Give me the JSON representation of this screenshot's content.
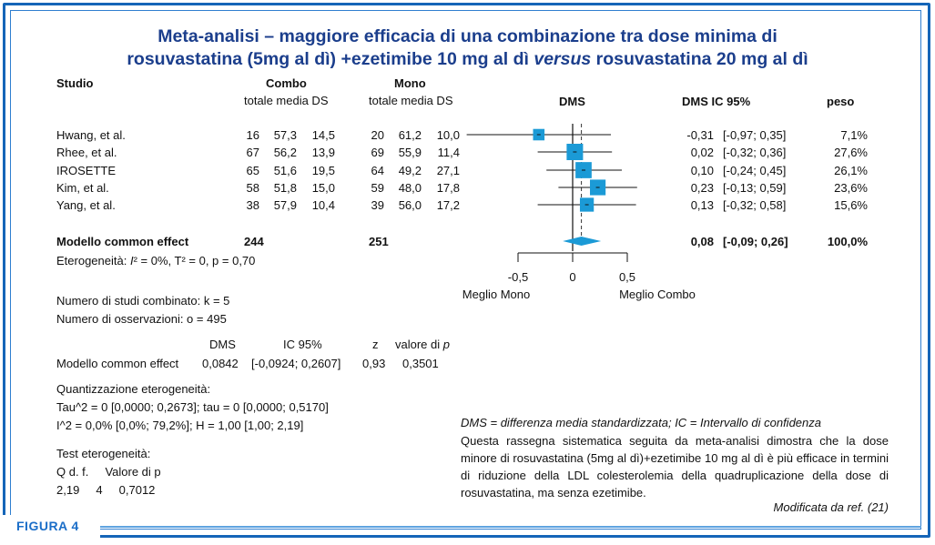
{
  "title": {
    "line1": "Meta-analisi – maggiore efficacia di una combinazione tra dose minima di",
    "line2_prefix": "rosuvastatina (5mg al dì) +ezetimibe 10 mg al dì ",
    "line2_italic": "versus",
    "line2_suffix": " rosuvastatina 20 mg al dì"
  },
  "headers": {
    "studio": "Studio",
    "combo": "Combo",
    "mono": "Mono",
    "sub_combo": "totale media DS",
    "sub_mono": "totale media DS",
    "dms": "DMS",
    "dms_ic": "DMS IC 95%",
    "peso": "peso"
  },
  "studies": [
    {
      "name": "Hwang, et al.",
      "c_tot": "16",
      "c_mean": "57,3",
      "c_ds": "14,5",
      "m_tot": "20",
      "m_mean": "61,2",
      "m_ds": "10,0",
      "dms": "-0,31",
      "ci": "[-0,97; 0,35]",
      "peso": "7,1%"
    },
    {
      "name": "Rhee, et al.",
      "c_tot": "67",
      "c_mean": "56,2",
      "c_ds": "13,9",
      "m_tot": "69",
      "m_mean": "55,9",
      "m_ds": "11,4",
      "dms": "0,02",
      "ci": "[-0,32; 0,36]",
      "peso": "27,6%"
    },
    {
      "name": "IROSETTE",
      "c_tot": "65",
      "c_mean": "51,6",
      "c_ds": "19,5",
      "m_tot": "64",
      "m_mean": "49,2",
      "m_ds": "27,1",
      "dms": "0,10",
      "ci": "[-0,24; 0,45]",
      "peso": "26,1%"
    },
    {
      "name": "Kim, et al.",
      "c_tot": "58",
      "c_mean": "51,8",
      "c_ds": "15,0",
      "m_tot": "59",
      "m_mean": "48,0",
      "m_ds": "17,8",
      "dms": "0,23",
      "ci": "[-0,13; 0,59]",
      "peso": "23,6%"
    },
    {
      "name": "Yang, et al.",
      "c_tot": "38",
      "c_mean": "57,9",
      "c_ds": "10,4",
      "m_tot": "39",
      "m_mean": "56,0",
      "m_ds": "17,2",
      "dms": "0,13",
      "ci": "[-0,32; 0,58]",
      "peso": "15,6%"
    }
  ],
  "summary": {
    "name": "Modello common effect",
    "c_tot": "244",
    "m_tot": "251",
    "dms": "0,08",
    "ci": "[-0,09; 0,26]",
    "peso": "100,0%"
  },
  "heterogeneity_line": {
    "prefix": "Eterogeneità: ",
    "i2": "I",
    "rest": "² = 0%, T² = 0, p = 0,70"
  },
  "axis": {
    "ticks": [
      "-0,5",
      "0",
      "0,5"
    ],
    "left_label": "Meglio Mono",
    "right_label": "Meglio Combo"
  },
  "stats": {
    "k_line": "Numero di studi combinato: k = 5",
    "o_line": "Numero di osservazioni: o = 495",
    "model_header": {
      "dms": "DMS",
      "ic": "IC 95%",
      "z": "z",
      "p_prefix": "valore di ",
      "p_italic": "p"
    },
    "model_row": {
      "name": "Modello common effect",
      "dms": "0,0842",
      "ic": "[-0,0924; 0,2607]",
      "z": "0,93",
      "p": "0,3501"
    },
    "quant_title": "Quantizzazione eterogeneità:",
    "tau_line": "Tau^2 = 0  [0,0000; 0,2673]; tau = 0  [0,0000; 0,5170]",
    "i2_line": "I^2 = 0,0%  [0,0%; 79,2%]; H = 1,00  [1,00; 2,19]",
    "test_title": "Test eterogeneità:",
    "test_header": "Q d. f.     Valore di p",
    "test_values": "2,19     4     0,7012"
  },
  "note_italic": "DMS = differenza media standardizzata; IC = Intervallo di confidenza",
  "paragraph": "Questa rassegna sistematica seguita da meta-analisi dimostra che la dose minore di rosuvastatina (5mg al dì)+ezetimibe 10 mg al dì è più efficace in termini di riduzione della LDL colesterolemia della quadruplicazione della dose di rosuvastatina, ma senza ezetimibe.",
  "source": "Modificata da ref. (21)",
  "figure_label": "FIGURA 4",
  "colors": {
    "frame": "#1565b8",
    "title": "#1b3e8c",
    "marker": "#1b9ad6",
    "figure_label": "#1b6ec8"
  },
  "chart_data": {
    "type": "forest",
    "studies": [
      "Hwang, et al.",
      "Rhee, et al.",
      "IROSETTE",
      "Kim, et al.",
      "Yang, et al."
    ],
    "smd": [
      -0.31,
      0.02,
      0.1,
      0.23,
      0.13
    ],
    "ci_low": [
      -0.97,
      -0.32,
      -0.24,
      -0.13,
      -0.32
    ],
    "ci_high": [
      0.35,
      0.36,
      0.45,
      0.59,
      0.58
    ],
    "weight": [
      7.1,
      27.6,
      26.1,
      23.6,
      15.6
    ],
    "common_effect": {
      "smd": 0.08,
      "ci_low": -0.09,
      "ci_high": 0.26
    },
    "xlabel": "DMS",
    "xlim": [
      -0.5,
      0.5
    ],
    "xticks": [
      -0.5,
      0,
      0.5
    ],
    "left_label": "Meglio Mono",
    "right_label": "Meglio Combo"
  }
}
